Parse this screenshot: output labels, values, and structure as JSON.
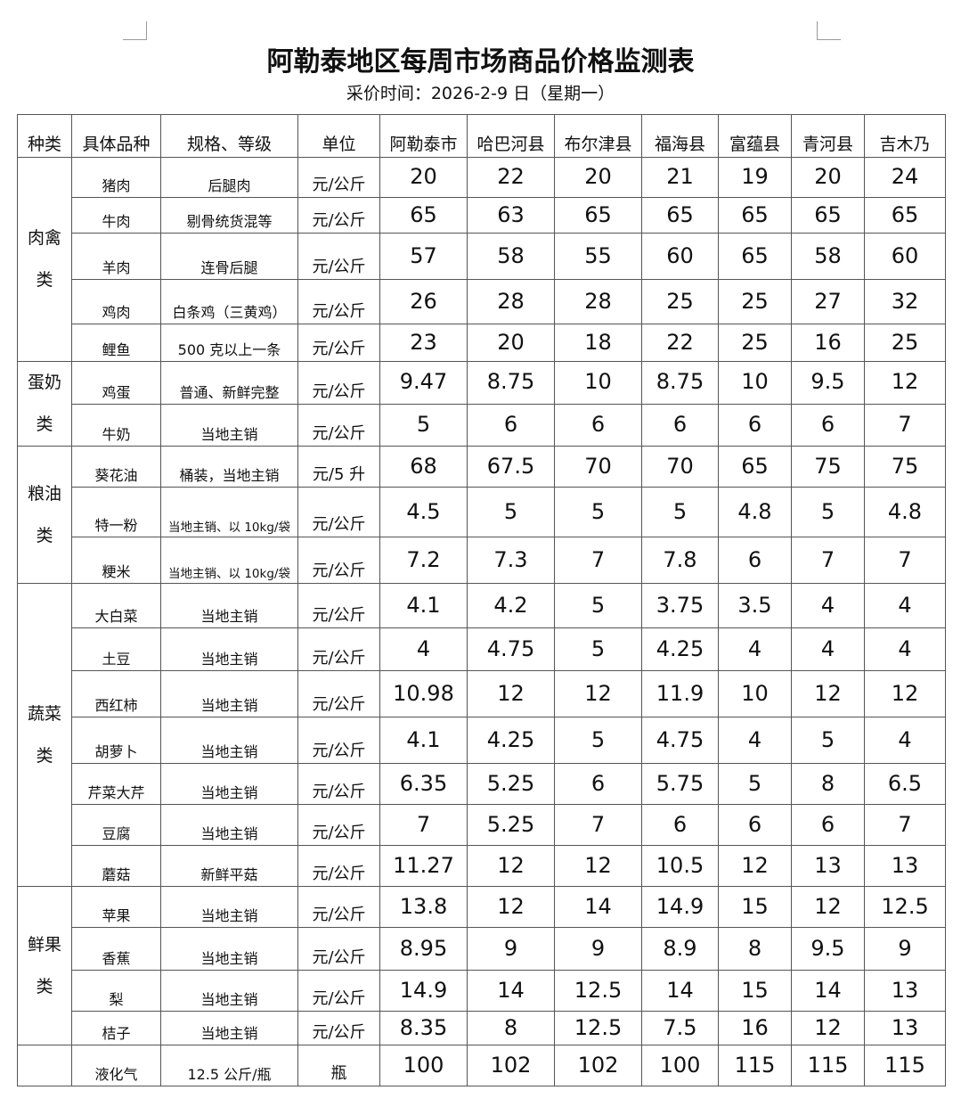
{
  "title": "阿勒泰地区每周市场商品价格监测表",
  "subtitle": "采价时间：2026-2-9 日（星期一）",
  "headers": [
    "种类",
    "具体品种",
    "规格、等级",
    "单位",
    "阿勒泰市",
    "哈巴河县",
    "布尔津县",
    "福海县",
    "富蕴县",
    "青河县",
    "吉木乃"
  ],
  "groups": [
    {
      "category": "肉禽类",
      "rows": [
        {
          "item": "猪肉",
          "spec": "后腿肉",
          "unit": "元/公斤",
          "prices": [
            "20",
            "22",
            "20",
            "21",
            "19",
            "20",
            "24"
          ]
        },
        {
          "item": "牛肉",
          "spec": "剔骨统货混等",
          "unit": "元/公斤",
          "prices": [
            "65",
            "63",
            "65",
            "65",
            "65",
            "65",
            "65"
          ]
        },
        {
          "item": "羊肉",
          "spec": "连骨后腿",
          "unit": "元/公斤",
          "prices": [
            "57",
            "58",
            "55",
            "60",
            "65",
            "58",
            "60"
          ]
        },
        {
          "item": "鸡肉",
          "spec": "白条鸡（三黄鸡）",
          "unit": "元/公斤",
          "prices": [
            "26",
            "28",
            "28",
            "25",
            "25",
            "27",
            "32"
          ]
        },
        {
          "item": "鲤鱼",
          "spec": "500 克以上一条",
          "unit": "元/公斤",
          "prices": [
            "23",
            "20",
            "18",
            "22",
            "25",
            "16",
            "25"
          ]
        }
      ]
    },
    {
      "category": "蛋奶类",
      "rows": [
        {
          "item": "鸡蛋",
          "spec": "普通、新鲜完整",
          "unit": "元/公斤",
          "prices": [
            "9.47",
            "8.75",
            "10",
            "8.75",
            "10",
            "9.5",
            "12"
          ]
        },
        {
          "item": "牛奶",
          "spec": "当地主销",
          "unit": "元/公斤",
          "prices": [
            "5",
            "6",
            "6",
            "6",
            "6",
            "6",
            "7"
          ]
        }
      ]
    },
    {
      "category": "粮油类",
      "rows": [
        {
          "item": "葵花油",
          "spec": "桶装，当地主销",
          "unit": "元/5 升",
          "prices": [
            "68",
            "67.5",
            "70",
            "70",
            "65",
            "75",
            "75"
          ]
        },
        {
          "item": "特一粉",
          "spec": "当地主销、以 10kg/袋",
          "unit": "元/公斤",
          "prices": [
            "4.5",
            "5",
            "5",
            "5",
            "4.8",
            "5",
            "4.8"
          ]
        },
        {
          "item": "粳米",
          "spec": "当地主销、以 10kg/袋",
          "unit": "元/公斤",
          "prices": [
            "7.2",
            "7.3",
            "7",
            "7.8",
            "6",
            "7",
            "7"
          ]
        }
      ]
    },
    {
      "category": "蔬菜类",
      "rows": [
        {
          "item": "大白菜",
          "spec": "当地主销",
          "unit": "元/公斤",
          "prices": [
            "4.1",
            "4.2",
            "5",
            "3.75",
            "3.5",
            "4",
            "4"
          ]
        },
        {
          "item": "土豆",
          "spec": "当地主销",
          "unit": "元/公斤",
          "prices": [
            "4",
            "4.75",
            "5",
            "4.25",
            "4",
            "4",
            "4"
          ]
        },
        {
          "item": "西红柿",
          "spec": "当地主销",
          "unit": "元/公斤",
          "prices": [
            "10.98",
            "12",
            "12",
            "11.9",
            "10",
            "12",
            "12"
          ]
        },
        {
          "item": "胡萝卜",
          "spec": "当地主销",
          "unit": "元/公斤",
          "prices": [
            "4.1",
            "4.25",
            "5",
            "4.75",
            "4",
            "5",
            "4"
          ]
        },
        {
          "item": "芹菜大芹",
          "spec": "当地主销",
          "unit": "元/公斤",
          "prices": [
            "6.35",
            "5.25",
            "6",
            "5.75",
            "5",
            "8",
            "6.5"
          ]
        },
        {
          "item": "豆腐",
          "spec": "当地主销",
          "unit": "元/公斤",
          "prices": [
            "7",
            "5.25",
            "7",
            "6",
            "6",
            "6",
            "7"
          ]
        },
        {
          "item": "蘑菇",
          "spec": "新鲜平菇",
          "unit": "元/公斤",
          "prices": [
            "11.27",
            "12",
            "12",
            "10.5",
            "12",
            "13",
            "13"
          ]
        }
      ]
    },
    {
      "category": "鲜果类",
      "rows": [
        {
          "item": "苹果",
          "spec": "当地主销",
          "unit": "元/公斤",
          "prices": [
            "13.8",
            "12",
            "14",
            "14.9",
            "15",
            "12",
            "12.5"
          ]
        },
        {
          "item": "香蕉",
          "spec": "当地主销",
          "unit": "元/公斤",
          "prices": [
            "8.95",
            "9",
            "9",
            "8.9",
            "8",
            "9.5",
            "9"
          ]
        },
        {
          "item": "梨",
          "spec": "当地主销",
          "unit": "元/公斤",
          "prices": [
            "14.9",
            "14",
            "12.5",
            "14",
            "15",
            "14",
            "13"
          ]
        },
        {
          "item": "桔子",
          "spec": "当地主销",
          "unit": "元/公斤",
          "prices": [
            "8.35",
            "8",
            "12.5",
            "7.5",
            "16",
            "12",
            "13"
          ]
        }
      ]
    },
    {
      "category": "",
      "rows": [
        {
          "item": "液化气",
          "spec": "12.5 公斤/瓶",
          "unit": "瓶",
          "prices": [
            "100",
            "102",
            "102",
            "100",
            "115",
            "115",
            "115"
          ]
        }
      ]
    }
  ]
}
